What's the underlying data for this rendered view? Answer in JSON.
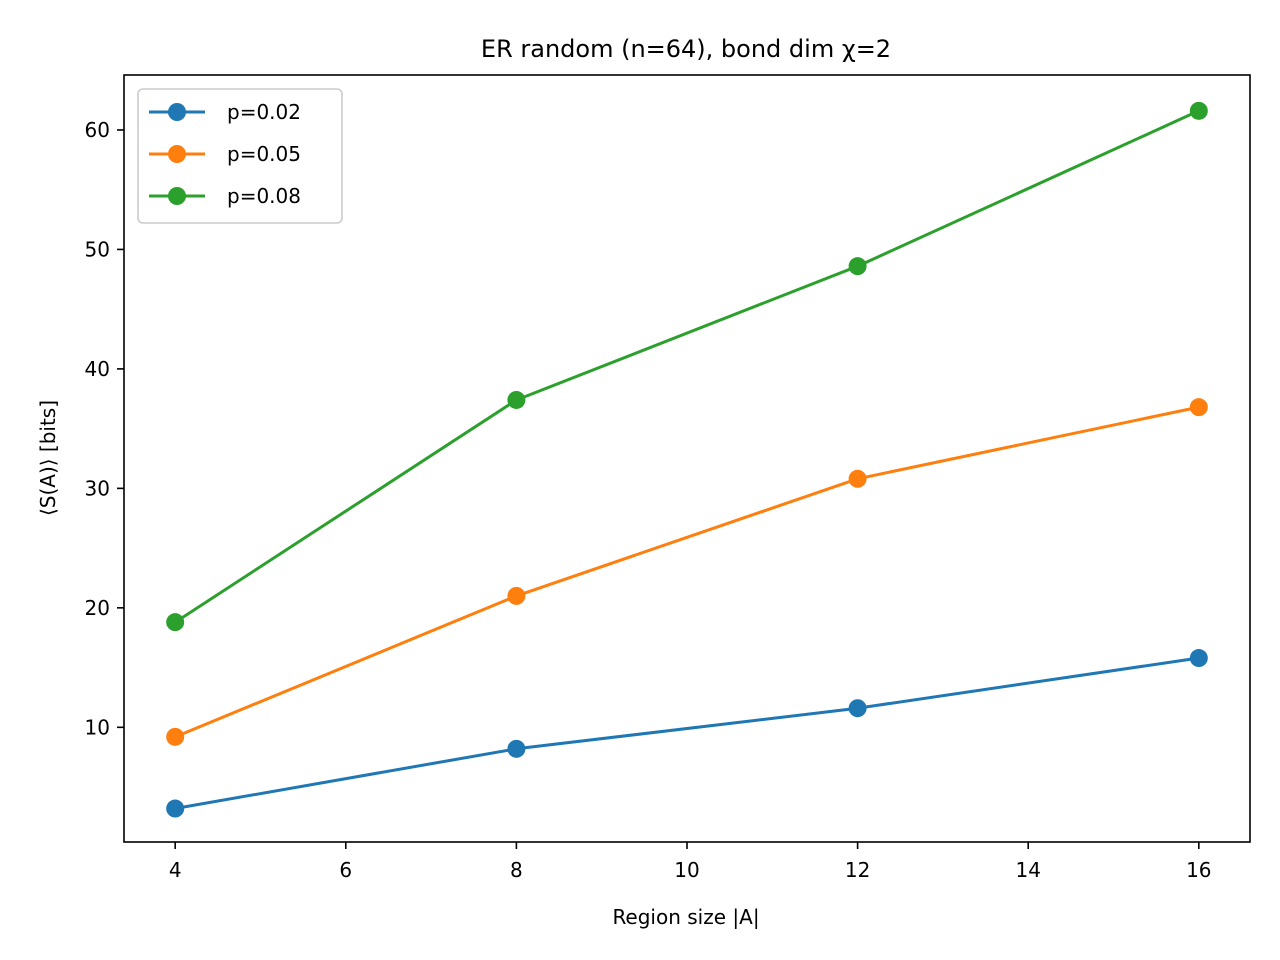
{
  "chart_data": {
    "type": "line",
    "title": "ER random (n=64), bond dim χ=2",
    "xlabel": "Region size |A|",
    "ylabel": "⟨S(A)⟩ [bits]",
    "x": [
      4,
      8,
      12,
      16
    ],
    "xlim": [
      3.4,
      16.6
    ],
    "ylim": [
      0.4,
      64.6
    ],
    "xticks": [
      4,
      6,
      8,
      10,
      12,
      14,
      16
    ],
    "yticks": [
      10,
      20,
      30,
      40,
      50,
      60
    ],
    "grid": false,
    "legend_position": "top-left",
    "series": [
      {
        "name": "p=0.02",
        "color": "#1f77b4",
        "values": [
          3.2,
          8.2,
          11.6,
          15.8
        ]
      },
      {
        "name": "p=0.05",
        "color": "#ff7f0e",
        "values": [
          9.2,
          21.0,
          30.8,
          36.8
        ]
      },
      {
        "name": "p=0.08",
        "color": "#2ca02c",
        "values": [
          18.8,
          37.4,
          48.6,
          61.6
        ]
      }
    ]
  }
}
